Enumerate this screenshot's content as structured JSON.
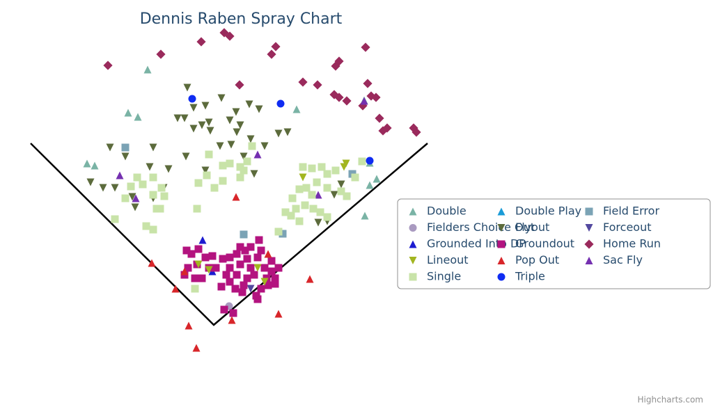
{
  "chart_data": {
    "type": "scatter",
    "title": "Dennis Raben Spray Chart",
    "credits": "Highcharts.com",
    "xlim": [
      -307,
      717
    ],
    "ylim": [
      -118,
      467
    ],
    "series": [
      {
        "name": "Double",
        "color": "#7ab3a5",
        "marker": "triangle",
        "x": [
          -95,
          -123,
          -109,
          -182,
          -171,
          119,
          216,
          224,
          234,
          224,
          217
        ],
        "values": [
          367,
          305,
          299,
          232,
          229,
          310,
          323,
          233,
          210,
          201,
          157
        ]
      },
      {
        "name": "Double Play",
        "color": "#1a9bd7",
        "marker": "triangle",
        "x": [],
        "values": []
      },
      {
        "name": "Field Error",
        "color": "#7ba3b5",
        "marker": "square",
        "x": [
          -127,
          43,
          99,
          199
        ],
        "values": [
          255,
          130,
          131,
          217
        ]
      },
      {
        "name": "Fielders Choice Out",
        "color": "#a99ac0",
        "marker": "circle",
        "x": [
          22
        ],
        "values": [
          27
        ]
      },
      {
        "name": "Flyout",
        "color": "#5c6b3c",
        "marker": "triangle-down",
        "x": [
          -38,
          -29,
          -12,
          11,
          32,
          51,
          65,
          -52,
          -42,
          -29,
          -17,
          -7,
          -5,
          23,
          38,
          33,
          9,
          25,
          53,
          73,
          93,
          106,
          -149,
          -127,
          -87,
          -92,
          -65,
          -177,
          -159,
          -142,
          -117,
          -113,
          -87,
          -72,
          -40,
          -12,
          43,
          58,
          150,
          163,
          173,
          183
        ],
        "values": [
          341,
          312,
          315,
          326,
          306,
          317,
          310,
          297,
          297,
          282,
          287,
          291,
          279,
          294,
          287,
          277,
          257,
          259,
          267,
          257,
          275,
          277,
          255,
          242,
          255,
          227,
          224,
          205,
          197,
          197,
          184,
          169,
          182,
          197,
          242,
          222,
          242,
          217,
          147,
          149,
          187,
          202
        ]
      },
      {
        "name": "Forceout",
        "color": "#53499f",
        "marker": "triangle-down",
        "x": [
          53
        ],
        "values": [
          52
        ]
      },
      {
        "name": "Grounded Into DP",
        "color": "#1c1cd0",
        "marker": "triangle",
        "x": [
          -16,
          -2
        ],
        "values": [
          122,
          77
        ]
      },
      {
        "name": "Groundout",
        "color": "#b3137f",
        "marker": "square",
        "x": [
          -39,
          -32,
          -22,
          -37,
          -42,
          -27,
          -17,
          -7,
          -12,
          13,
          23,
          18,
          11,
          23,
          33,
          38,
          45,
          48,
          53,
          58,
          63,
          65,
          73,
          76,
          83,
          88,
          78,
          68,
          61,
          63,
          43,
          48,
          33,
          38,
          23,
          3,
          93,
          83,
          68,
          53,
          28,
          15,
          41,
          31,
          -2,
          -24,
          88
        ],
        "values": [
          107,
          102,
          109,
          82,
          72,
          67,
          67,
          82,
          97,
          95,
          82,
          72,
          55,
          62,
          72,
          87,
          107,
          95,
          82,
          72,
          97,
          122,
          82,
          67,
          77,
          67,
          57,
          52,
          42,
          37,
          57,
          67,
          102,
          112,
          97,
          82,
          82,
          92,
          107,
          112,
          17,
          22,
          47,
          52,
          99,
          87,
          59
        ]
      },
      {
        "name": "Home Run",
        "color": "#9a2a5c",
        "marker": "diamond",
        "x": [
          -152,
          -76,
          -18,
          15,
          23,
          89,
          83,
          218,
          180,
          175,
          128,
          149,
          37,
          221,
          173,
          180,
          191,
          214,
          226,
          233,
          238,
          243,
          249,
          287,
          291
        ],
        "values": [
          373,
          389,
          407,
          420,
          415,
          400,
          389,
          399,
          379,
          372,
          349,
          345,
          345,
          347,
          331,
          327,
          322,
          315,
          329,
          327,
          297,
          279,
          283,
          283,
          277
        ]
      },
      {
        "name": "Lineout",
        "color": "#a2b520",
        "marker": "triangle-down",
        "x": [
          128,
          190,
          187,
          -22,
          63,
          73,
          -7
        ],
        "values": [
          212,
          232,
          227,
          87,
          82,
          62,
          79
        ]
      },
      {
        "name": "Pop Out",
        "color": "#d8262a",
        "marker": "triangle",
        "x": [
          32,
          -89,
          -55,
          -36,
          -25,
          26,
          93,
          138,
          78,
          -42
        ],
        "values": [
          184,
          89,
          52,
          -1,
          -33,
          7,
          16,
          66,
          102,
          77
        ]
      },
      {
        "name": "Sac Fly",
        "color": "#7530b0",
        "marker": "triangle",
        "x": [
          -135,
          -112,
          63,
          150,
          216
        ],
        "values": [
          215,
          182,
          245,
          187,
          322
        ]
      },
      {
        "name": "Single",
        "color": "#c8e3a8",
        "marker": "square",
        "x": [
          -142,
          -110,
          -102,
          -87,
          -75,
          -71,
          -119,
          -87,
          -127,
          -77,
          -97,
          -87,
          -82,
          -7,
          13,
          23,
          38,
          48,
          55,
          43,
          -22,
          1,
          -24,
          38,
          -10,
          13,
          128,
          141,
          155,
          163,
          175,
          148,
          133,
          123,
          113,
          141,
          163,
          183,
          191,
          203,
          213,
          103,
          118,
          131,
          143,
          153,
          163,
          123,
          111,
          93,
          -27
        ],
        "values": [
          152,
          212,
          202,
          212,
          197,
          185,
          199,
          187,
          182,
          167,
          142,
          137,
          167,
          245,
          229,
          232,
          227,
          235,
          257,
          222,
          204,
          197,
          167,
          212,
          215,
          207,
          227,
          225,
          227,
          217,
          222,
          205,
          197,
          195,
          182,
          187,
          197,
          192,
          185,
          212,
          235,
          162,
          167,
          172,
          167,
          162,
          155,
          149,
          157,
          134,
          52
        ]
      },
      {
        "name": "Triple",
        "color": "#0f2cf2",
        "marker": "circle",
        "x": [
          -31,
          96,
          224
        ],
        "values": [
          325,
          318,
          236
        ]
      }
    ]
  }
}
